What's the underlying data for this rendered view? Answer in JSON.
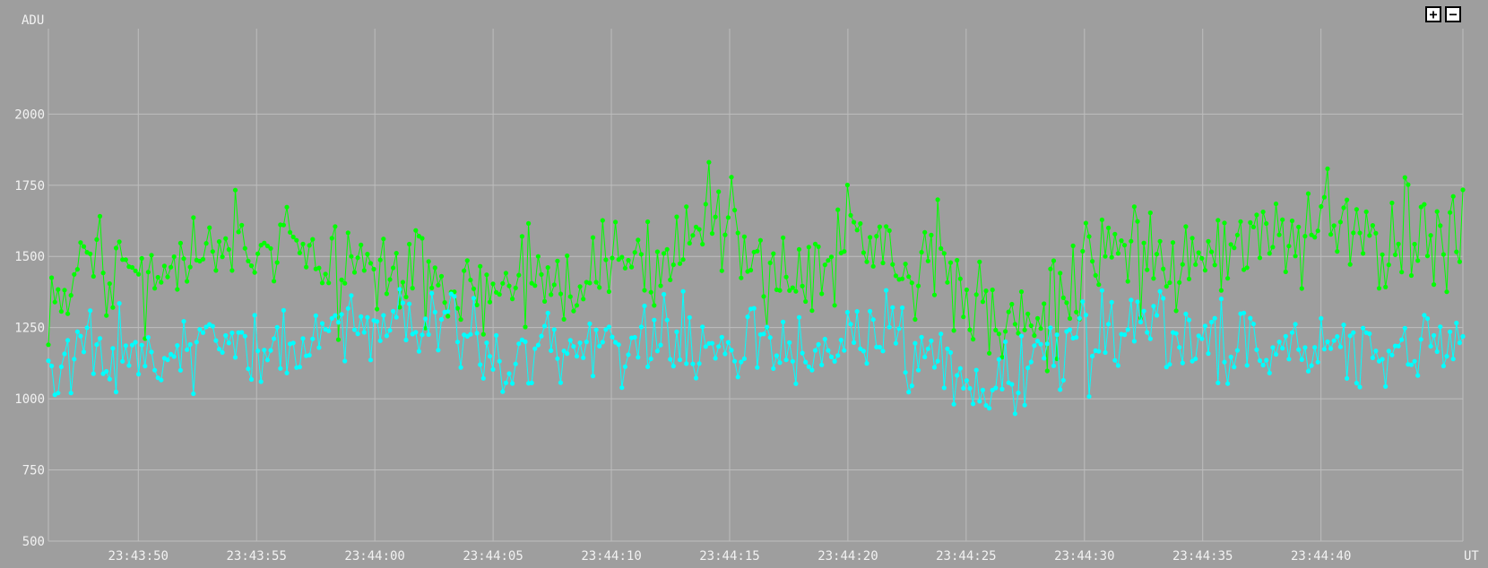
{
  "controls": {
    "zoom_in": "+",
    "zoom_out": "−"
  },
  "chart_data": {
    "type": "line",
    "y_unit_label": "ADU",
    "x_unit_label": "UT",
    "ylim": [
      500,
      2300
    ],
    "y_ticks": [
      500,
      750,
      1000,
      1250,
      1500,
      1750,
      2000
    ],
    "x_range": [
      "23:43:46.2",
      "23:44:46.0"
    ],
    "x_ticks": [
      "23:43:50",
      "23:43:55",
      "23:44:00",
      "23:44:05",
      "23:44:10",
      "23:44:15",
      "23:44:20",
      "23:44:25",
      "23:44:30",
      "23:44:35",
      "23:44:40"
    ],
    "grid": true,
    "colors": {
      "background": "#9e9e9e",
      "grid": "#bdbdbd",
      "text": "#f2f2f2"
    },
    "series": [
      {
        "color": "#00ff00",
        "x": [
          "23:43:46.2",
          "23:43:48.2",
          "23:43:50.2",
          "23:43:52.2",
          "23:43:54.2",
          "23:43:56.2",
          "23:43:58.2",
          "23:44:00.2",
          "23:44:02.2",
          "23:44:04.2",
          "23:44:06.2",
          "23:44:08.2",
          "23:44:10.2",
          "23:44:12.2",
          "23:44:14.2",
          "23:44:16.2",
          "23:44:18.2",
          "23:44:20.2",
          "23:44:22.2",
          "23:44:24.2",
          "23:44:26.2",
          "23:44:28.2",
          "23:44:30.2",
          "23:44:32.2",
          "23:44:34.2",
          "23:44:36.2",
          "23:44:38.2",
          "23:44:40.2",
          "23:44:42.2",
          "23:44:44.2",
          "23:44:46.0"
        ],
        "mean": [
          1380,
          1450,
          1430,
          1480,
          1520,
          1550,
          1470,
          1440,
          1430,
          1350,
          1400,
          1370,
          1540,
          1470,
          1610,
          1490,
          1460,
          1620,
          1500,
          1460,
          1250,
          1280,
          1490,
          1540,
          1480,
          1570,
          1560,
          1620,
          1560,
          1540,
          1550
        ],
        "spread": 170,
        "seed": 11
      },
      {
        "color": "#00ffff",
        "x": [
          "23:43:46.2",
          "23:43:48.2",
          "23:43:50.2",
          "23:43:52.2",
          "23:43:54.2",
          "23:43:56.2",
          "23:43:58.2",
          "23:44:00.2",
          "23:44:02.2",
          "23:44:04.2",
          "23:44:06.2",
          "23:44:08.2",
          "23:44:10.2",
          "23:44:12.2",
          "23:44:14.2",
          "23:44:16.2",
          "23:44:18.2",
          "23:44:20.2",
          "23:44:22.2",
          "23:44:24.2",
          "23:44:26.2",
          "23:44:28.2",
          "23:44:30.2",
          "23:44:32.2",
          "23:44:34.2",
          "23:44:36.2",
          "23:44:38.2",
          "23:44:40.2",
          "23:44:42.2",
          "23:44:44.2",
          "23:44:46.0"
        ],
        "mean": [
          1130,
          1180,
          1150,
          1170,
          1200,
          1210,
          1260,
          1250,
          1330,
          1180,
          1150,
          1160,
          1220,
          1200,
          1180,
          1200,
          1170,
          1270,
          1180,
          1090,
          1010,
          1150,
          1200,
          1260,
          1210,
          1180,
          1170,
          1170,
          1190,
          1160,
          1180
        ],
        "spread": 130,
        "seed": 29
      }
    ]
  }
}
